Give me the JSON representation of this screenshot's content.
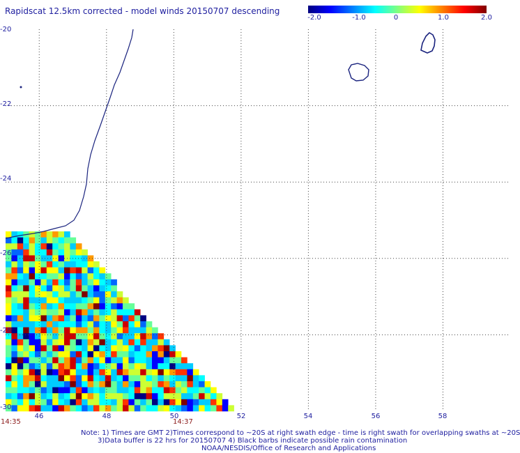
{
  "title": "Rapidscat 12.5km corrected - model winds 20150707 descending",
  "colorbar": {
    "ticks": [
      "-2.0",
      "-1.0",
      "0",
      "1.0",
      "2.0"
    ],
    "stops": [
      "#000080",
      "#0000ff",
      "#0080ff",
      "#00ffff",
      "#80ff80",
      "#ffff00",
      "#ff8000",
      "#ff0000",
      "#800000"
    ]
  },
  "map": {
    "lon_range": [
      45,
      60
    ],
    "lat_range": [
      -30,
      -20
    ],
    "y_tick_labels": [
      "-20",
      "-22",
      "-24",
      "-26",
      "-28",
      "-30"
    ],
    "x_tick_labels": [
      "46",
      "48",
      "50",
      "52",
      "54",
      "56",
      "58"
    ],
    "times": [
      "14:35",
      "14:37"
    ]
  },
  "notes": {
    "line1": "Note: 1) Times are GMT 2)Times correspond to ~20S at right swath edge - time is right swath for overlapping swaths at ~20S",
    "line2": "3)Data buffer is 22 hrs for 20150707 4) Black barbs indicate possible rain contamination",
    "line3": "NOAA/NESDIS/Office of Research and Applications"
  }
}
